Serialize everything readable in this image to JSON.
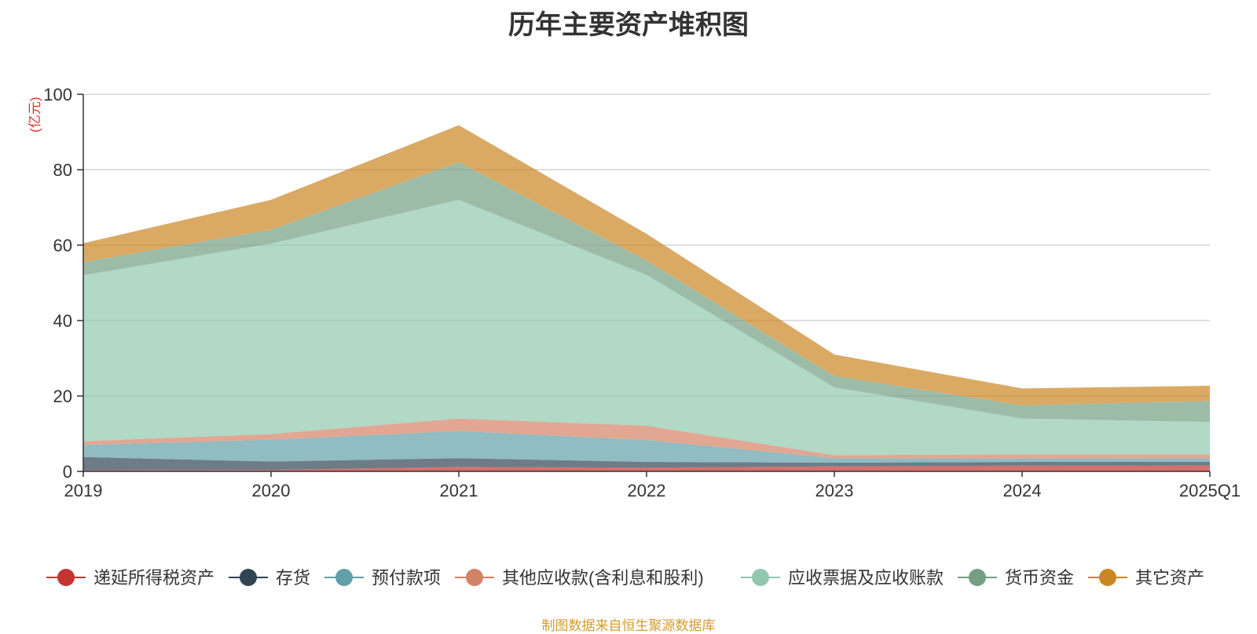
{
  "chart_data": {
    "type": "area",
    "stacked": true,
    "title": "历年主要资产堆积图",
    "unit": "(亿元)",
    "categories": [
      "2019",
      "2020",
      "2021",
      "2022",
      "2023",
      "2024",
      "2025Q1"
    ],
    "ylim": [
      0,
      100
    ],
    "yticks": [
      "0",
      "20",
      "40",
      "60",
      "80",
      "100"
    ],
    "grid": true,
    "legend_position": "bottom",
    "series": [
      {
        "name": "递延所得税资产",
        "color": "#c23531",
        "values": [
          0.3,
          0.4,
          1.2,
          1.0,
          1.3,
          1.5,
          1.6
        ]
      },
      {
        "name": "存货",
        "color": "#2f4554",
        "values": [
          3.5,
          2.2,
          2.3,
          1.5,
          1.0,
          1.0,
          0.9
        ]
      },
      {
        "name": "预付款项",
        "color": "#61a0a8",
        "values": [
          3.2,
          5.8,
          7.2,
          5.8,
          1.2,
          0.9,
          1.0
        ]
      },
      {
        "name": "其他应收款(含利息和股利)",
        "color": "#d48265",
        "values": [
          1.0,
          1.5,
          3.3,
          3.8,
          0.8,
          1.1,
          1.0
        ]
      },
      {
        "name": "应收票据及应收账款",
        "color": "#91c7ae",
        "values": [
          44.0,
          50.5,
          58.0,
          40.0,
          18.0,
          9.5,
          8.6
        ]
      },
      {
        "name": "货币资金",
        "color": "#749f83",
        "values": [
          3.5,
          3.7,
          10.0,
          3.8,
          3.0,
          3.5,
          5.6
        ]
      },
      {
        "name": "其它资产",
        "color": "#ca8622",
        "values": [
          5.0,
          7.9,
          9.8,
          7.1,
          5.7,
          4.5,
          4.0
        ]
      }
    ]
  },
  "footer": "制图数据来自恒生聚源数据库"
}
